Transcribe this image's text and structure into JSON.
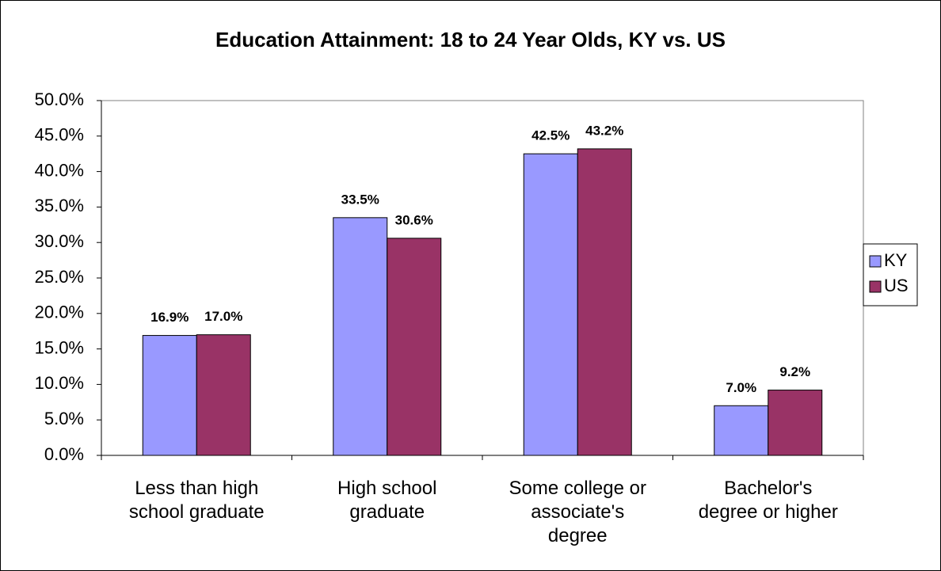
{
  "chart_data": {
    "type": "bar",
    "title": "Education Attainment: 18 to 24 Year Olds, KY vs. US",
    "categories": [
      "Less than high school graduate",
      "High school graduate",
      "Some college or associate's degree",
      "Bachelor's degree or higher"
    ],
    "series": [
      {
        "name": "KY",
        "color": "#9999ff",
        "values": [
          16.9,
          33.5,
          42.5,
          7.0
        ],
        "value_labels": [
          "16.9%",
          "33.5%",
          "42.5%",
          "7.0%"
        ]
      },
      {
        "name": "US",
        "color": "#993366",
        "values": [
          17.0,
          30.6,
          43.2,
          9.2
        ],
        "value_labels": [
          "17.0%",
          "30.6%",
          "43.2%",
          "9.2%"
        ]
      }
    ],
    "ylim": [
      0,
      50
    ],
    "yticks": [
      {
        "value": 0,
        "label": "0.0%"
      },
      {
        "value": 5,
        "label": "5.0%"
      },
      {
        "value": 10,
        "label": "10.0%"
      },
      {
        "value": 15,
        "label": "15.0%"
      },
      {
        "value": 20,
        "label": "20.0%"
      },
      {
        "value": 25,
        "label": "25.0%"
      },
      {
        "value": 30,
        "label": "30.0%"
      },
      {
        "value": 35,
        "label": "35.0%"
      },
      {
        "value": 40,
        "label": "40.0%"
      },
      {
        "value": 45,
        "label": "45.0%"
      },
      {
        "value": 50,
        "label": "50.0%"
      }
    ],
    "grid": false,
    "legend": "right"
  }
}
